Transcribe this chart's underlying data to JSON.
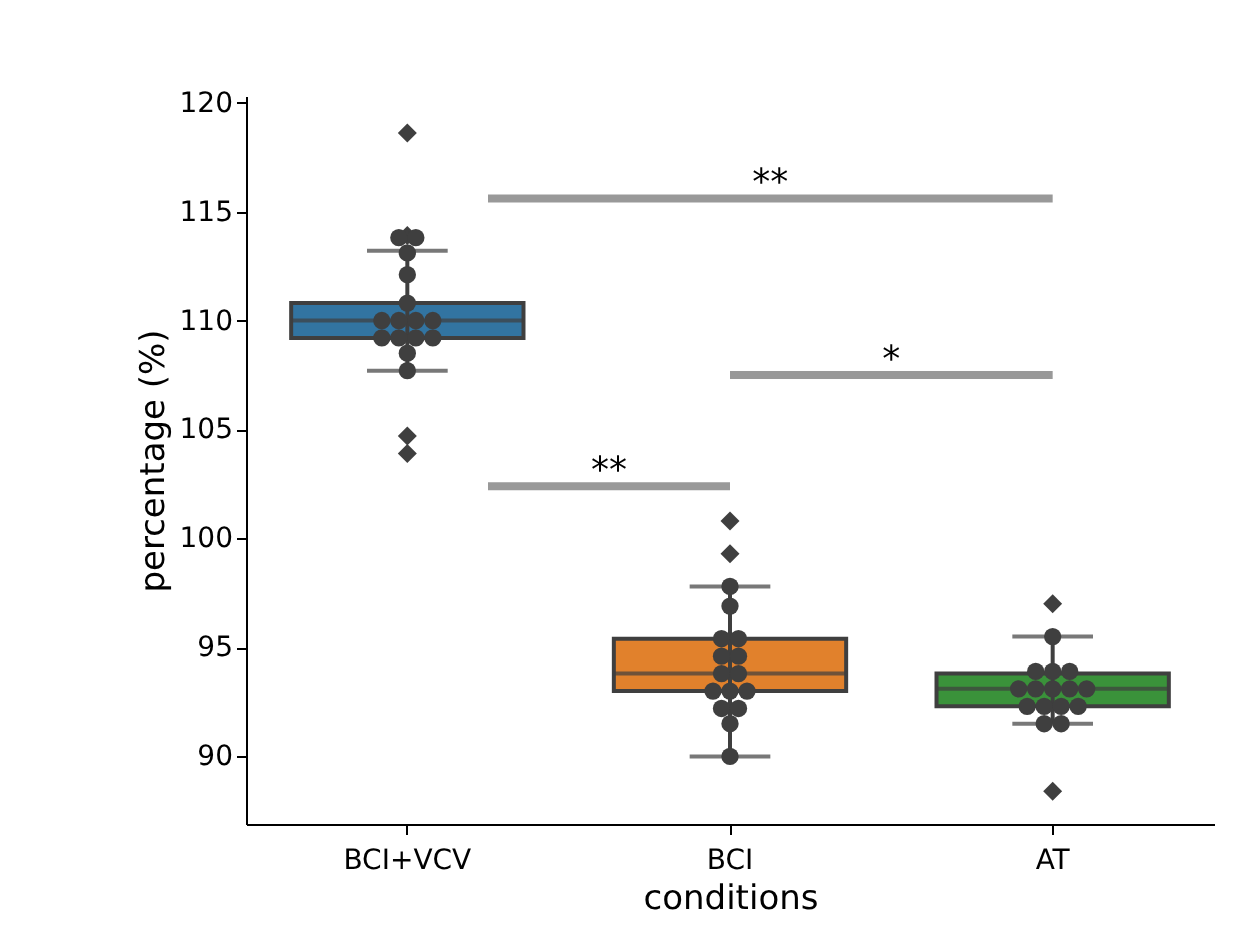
{
  "chart_data": {
    "type": "box",
    "xlabel": "conditions",
    "ylabel": "percentage (%)",
    "categories": [
      "BCI+VCV",
      "BCI",
      "AT"
    ],
    "colors": [
      "#3274a1",
      "#e1812c",
      "#3a923a"
    ],
    "boxes": [
      {
        "low": 107.7,
        "q1": 109.2,
        "median": 110.0,
        "q3": 110.8,
        "high": 113.2,
        "outliers": [
          118.6,
          113.9,
          104.7,
          103.9
        ]
      },
      {
        "low": 90.0,
        "q1": 93.0,
        "median": 93.8,
        "q3": 95.4,
        "high": 97.8,
        "outliers": [
          100.8,
          99.3
        ]
      },
      {
        "low": 91.5,
        "q1": 92.3,
        "median": 93.1,
        "q3": 93.8,
        "high": 95.5,
        "outliers": [
          97.0,
          88.4
        ]
      }
    ],
    "series": [
      {
        "type": "scatter",
        "color": "#3f3f3f",
        "marker": "circle",
        "x": [
          "BCI+VCV",
          "BCI+VCV",
          "BCI+VCV",
          "BCI+VCV",
          "BCI+VCV",
          "BCI+VCV",
          "BCI+VCV",
          "BCI+VCV",
          "BCI+VCV",
          "BCI+VCV",
          "BCI+VCV",
          "BCI+VCV",
          "BCI+VCV",
          "BCI+VCV",
          "BCI+VCV",
          "BCI",
          "BCI",
          "BCI",
          "BCI",
          "BCI",
          "BCI",
          "BCI",
          "BCI",
          "BCI",
          "BCI",
          "BCI",
          "BCI",
          "BCI",
          "BCI",
          "BCI",
          "AT",
          "AT",
          "AT",
          "AT",
          "AT",
          "AT",
          "AT",
          "AT",
          "AT",
          "AT",
          "AT",
          "AT",
          "AT",
          "AT",
          "AT"
        ],
        "values": [
          113.8,
          113.8,
          113.1,
          112.1,
          110.8,
          110.0,
          110.0,
          110.0,
          110.0,
          109.2,
          109.2,
          109.2,
          109.2,
          108.5,
          107.7,
          97.8,
          96.9,
          95.4,
          95.4,
          94.6,
          94.6,
          93.8,
          93.8,
          93.0,
          93.0,
          93.0,
          92.2,
          92.2,
          91.5,
          90.0,
          95.5,
          93.9,
          93.9,
          93.9,
          93.1,
          93.1,
          93.1,
          93.1,
          93.1,
          92.3,
          92.3,
          92.3,
          92.3,
          91.5,
          91.5
        ]
      }
    ],
    "annotations": [
      "**",
      "*",
      "**"
    ],
    "ylim": [
      86.9,
      120.3
    ],
    "yticks": [
      90,
      95,
      100,
      105,
      110,
      115,
      120
    ],
    "grid": false
  }
}
